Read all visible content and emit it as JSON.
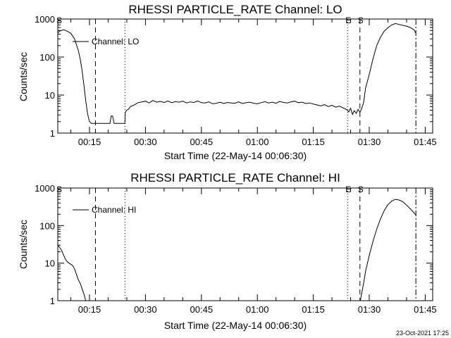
{
  "footer": {
    "timestamp": "23-Oct-2021 17:25"
  },
  "chart_data": [
    {
      "type": "line",
      "title": "RHESSI PARTICLE_RATE Channel: LO",
      "xlabel": "Start Time (22-May-14 00:06:30)",
      "ylabel": "Counts/sec",
      "y_scale": "log",
      "xlim_minutes": [
        6.5,
        107
      ],
      "ylim": [
        1,
        1000
      ],
      "x_ticks": [
        {
          "value": 15,
          "label": "00:15"
        },
        {
          "value": 30,
          "label": "00:30"
        },
        {
          "value": 45,
          "label": "00:45"
        },
        {
          "value": 60,
          "label": "01:00"
        },
        {
          "value": 75,
          "label": "01:15"
        },
        {
          "value": 90,
          "label": "01:30"
        },
        {
          "value": 105,
          "label": "01:45"
        }
      ],
      "y_ticks": [
        {
          "value": 1,
          "label": "1"
        },
        {
          "value": 10,
          "label": "10"
        },
        {
          "value": 100,
          "label": "100"
        },
        {
          "value": 1000,
          "label": "1000"
        }
      ],
      "legend": {
        "label": "Channel: LO",
        "placement": "top-left"
      },
      "markers": [
        {
          "label": "S",
          "x": 6.7,
          "style": "none"
        },
        {
          "x": 16.6,
          "style": "dashed"
        },
        {
          "x": 24.5,
          "style": "dotted"
        },
        {
          "label": "E",
          "x": 84.2,
          "style": "dotted"
        },
        {
          "label": "S",
          "x": 87.5,
          "style": "dashed"
        },
        {
          "x": 102.5,
          "style": "dashdot"
        }
      ],
      "series": [
        {
          "name": "Channel: LO",
          "x": [
            6.5,
            7,
            8,
            9,
            10,
            11,
            12,
            12.5,
            13,
            13.5,
            14,
            14.5,
            15,
            15.5,
            16,
            16.5,
            17,
            18,
            19,
            20,
            20.5,
            20.8,
            21.2,
            21.6,
            22,
            23,
            24,
            24.5,
            24.6,
            25,
            25.5,
            26,
            27,
            28,
            29,
            30,
            31,
            32,
            33,
            34,
            35,
            36,
            37,
            38,
            39,
            40,
            41,
            42,
            43,
            44,
            45,
            46,
            47,
            48,
            49,
            50,
            51,
            52,
            53,
            54,
            55,
            56,
            57,
            58,
            59,
            60,
            61,
            62,
            63,
            64,
            65,
            66,
            67,
            68,
            69,
            70,
            71,
            72,
            73,
            74,
            75,
            76,
            77,
            78,
            79,
            80,
            81,
            82,
            83,
            84,
            84.5,
            85,
            85.5,
            86,
            86.5,
            87,
            87.5,
            88,
            88.5,
            89,
            90,
            91,
            92,
            93,
            94,
            95,
            96,
            97,
            98,
            99,
            100,
            101,
            102,
            102.5
          ],
          "y": [
            430,
            480,
            520,
            480,
            420,
            300,
            150,
            90,
            45,
            18,
            7,
            3.2,
            2,
            1.8,
            1.8,
            1.8,
            1.8,
            1.8,
            1.8,
            1.8,
            1.8,
            2.8,
            2.8,
            1.8,
            1.8,
            1.8,
            1.8,
            1.8,
            3.5,
            4,
            4.3,
            5,
            5.5,
            6.3,
            6.6,
            6.9,
            6.2,
            7.2,
            6.5,
            6.8,
            6.4,
            7,
            6.3,
            6.7,
            6.5,
            6.9,
            6.2,
            6.6,
            6.4,
            7,
            6.3,
            6.2,
            6.6,
            5.9,
            6.1,
            6.5,
            6,
            6.4,
            6.2,
            6.1,
            6.6,
            6,
            6.3,
            6.5,
            6.1,
            5.9,
            6.3,
            6.7,
            6.2,
            6.5,
            6.1,
            6.8,
            6.4,
            6.2,
            6.6,
            6.9,
            6.3,
            6.5,
            6,
            6.2,
            5.8,
            5.5,
            5.2,
            5.6,
            5,
            5.4,
            4.8,
            5.1,
            4.6,
            4.1,
            3.6,
            4.5,
            3.1,
            3.9,
            3.3,
            4.2,
            3.5,
            4.5,
            6.5,
            15,
            35,
            90,
            200,
            330,
            480,
            590,
            700,
            760,
            720,
            680,
            650,
            600,
            520,
            420
          ]
        }
      ]
    },
    {
      "type": "line",
      "title": "RHESSI PARTICLE_RATE Channel: HI",
      "xlabel": "Start Time (22-May-14 00:06:30)",
      "ylabel": "Counts/sec",
      "y_scale": "log",
      "xlim_minutes": [
        6.5,
        107
      ],
      "ylim": [
        1,
        1000
      ],
      "x_ticks": [
        {
          "value": 15,
          "label": "00:15"
        },
        {
          "value": 30,
          "label": "00:30"
        },
        {
          "value": 45,
          "label": "00:45"
        },
        {
          "value": 60,
          "label": "01:00"
        },
        {
          "value": 75,
          "label": "01:15"
        },
        {
          "value": 90,
          "label": "01:30"
        },
        {
          "value": 105,
          "label": "01:45"
        }
      ],
      "y_ticks": [
        {
          "value": 1,
          "label": "1"
        },
        {
          "value": 10,
          "label": "10"
        },
        {
          "value": 100,
          "label": "100"
        },
        {
          "value": 1000,
          "label": "1000"
        }
      ],
      "legend": {
        "label": "Channel: HI",
        "placement": "top-left"
      },
      "markers": [
        {
          "label": "S",
          "x": 6.7,
          "style": "none"
        },
        {
          "x": 16.6,
          "style": "dashed"
        },
        {
          "x": 24.5,
          "style": "dotted"
        },
        {
          "label": "E",
          "x": 84.2,
          "style": "dotted"
        },
        {
          "label": "S",
          "x": 87.5,
          "style": "dashed"
        },
        {
          "x": 102.5,
          "style": "dashdot"
        }
      ],
      "series": [
        {
          "name": "Channel: HI",
          "x": [
            6.5,
            7,
            7.5,
            8,
            8.5,
            9,
            9.5,
            10,
            10.5,
            11,
            11.5,
            12,
            12.5,
            13,
            13.5,
            14,
            87.6,
            88,
            88.5,
            89,
            90,
            91,
            92,
            93,
            94,
            95,
            96,
            97,
            98,
            99,
            100,
            101,
            102,
            102.5
          ],
          "y": [
            30,
            26,
            22,
            17,
            13,
            11,
            10,
            9.3,
            8.6,
            7,
            5,
            3.6,
            2.9,
            2.1,
            1.5,
            1,
            1,
            1.6,
            3,
            6,
            16,
            38,
            80,
            150,
            250,
            360,
            450,
            500,
            480,
            430,
            350,
            280,
            220,
            190
          ]
        }
      ]
    }
  ]
}
